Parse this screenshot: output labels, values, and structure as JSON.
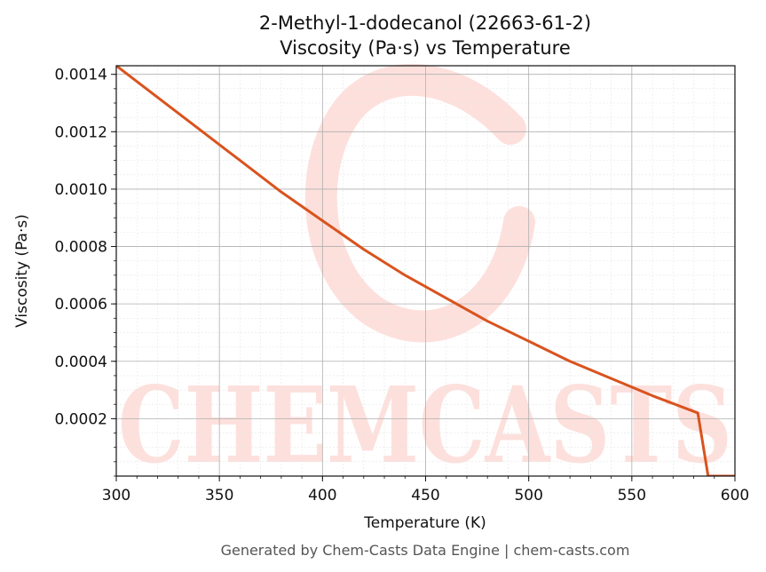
{
  "chart_data": {
    "type": "line",
    "title": "2-Methyl-1-dodecanol (22663-61-2)",
    "subtitle": "Viscosity (Pa·s) vs Temperature",
    "xlabel": "Temperature (K)",
    "ylabel": "Viscosity (Pa·s)",
    "xlim": [
      300,
      600
    ],
    "ylim": [
      0.0,
      0.00143
    ],
    "x_ticks": [
      300,
      350,
      400,
      450,
      500,
      550,
      600
    ],
    "x_tick_labels": [
      "300",
      "350",
      "400",
      "450",
      "500",
      "550",
      "600"
    ],
    "y_ticks": [
      0.0002,
      0.0004,
      0.0006,
      0.0008,
      0.001,
      0.0012,
      0.0014
    ],
    "y_tick_labels": [
      "0.0002",
      "0.0004",
      "0.0006",
      "0.0008",
      "0.0010",
      "0.0012",
      "0.0014"
    ],
    "grid": true,
    "line_color": "#d9531e",
    "series": [
      {
        "x": [
          300,
          320,
          340,
          360,
          380,
          400,
          420,
          440,
          460,
          480,
          500,
          520,
          540,
          560,
          582,
          587,
          600
        ],
        "y": [
          0.00143,
          0.00132,
          0.00121,
          0.0011,
          0.00099,
          0.00089,
          0.00079,
          0.0007,
          0.00062,
          0.00054,
          0.00047,
          0.0004,
          0.00034,
          0.00028,
          0.00022,
          0.0,
          0.0
        ]
      }
    ]
  },
  "watermark": {
    "text": "CHEMCASTS",
    "color": "#fde0dc"
  },
  "footer": "Generated by Chem-Casts Data Engine | chem-casts.com"
}
